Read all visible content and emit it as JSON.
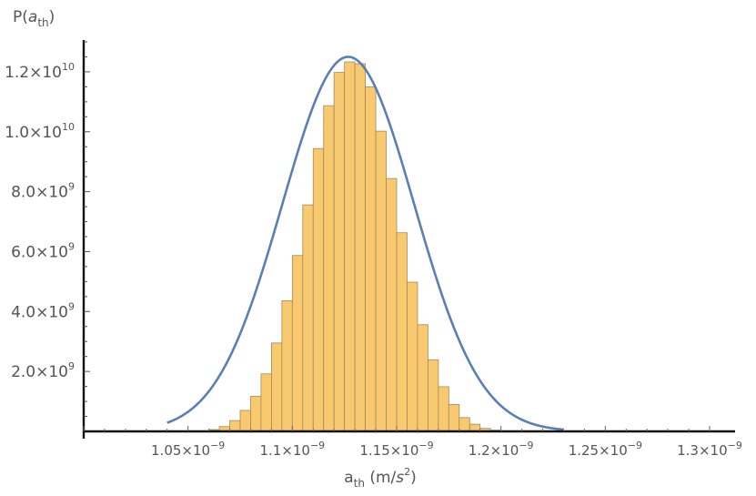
{
  "chart_data": {
    "type": "histogram",
    "ylabel_prefix": "P(",
    "ylabel_var": "a",
    "ylabel_sub": "th",
    "ylabel_suffix": ")",
    "xlabel_var": "a",
    "xlabel_sub": "th",
    "xlabel_unit": " (m/",
    "xlabel_unit_var": "s",
    "xlabel_unit_exp": "2",
    "xlabel_unit_close": ")",
    "x_axis_cross": 1e-09,
    "xlim": [
      1e-09,
      1.3e-09
    ],
    "ylim": [
      0,
      13000000000.0
    ],
    "grid": false,
    "legend": "none",
    "x_ticks": [
      {
        "value": 1.05e-09,
        "mant": "1.05",
        "times": "×10",
        "exp": "−9"
      },
      {
        "value": 1.1e-09,
        "mant": "1.1",
        "times": "×10",
        "exp": "−9"
      },
      {
        "value": 1.15e-09,
        "mant": "1.15",
        "times": "×10",
        "exp": "−9"
      },
      {
        "value": 1.2e-09,
        "mant": "1.2",
        "times": "×10",
        "exp": "−9"
      },
      {
        "value": 1.25e-09,
        "mant": "1.25",
        "times": "×10",
        "exp": "−9"
      },
      {
        "value": 1.3e-09,
        "mant": "1.3",
        "times": "×10",
        "exp": "−9"
      }
    ],
    "y_ticks": [
      {
        "value": 2000000000.0,
        "mant": "2.0",
        "times": "×10",
        "exp": "9"
      },
      {
        "value": 4000000000.0,
        "mant": "4.0",
        "times": "×10",
        "exp": "9"
      },
      {
        "value": 6000000000.0,
        "mant": "6.0",
        "times": "×10",
        "exp": "9"
      },
      {
        "value": 8000000000.0,
        "mant": "8.0",
        "times": "×10",
        "exp": "9"
      },
      {
        "value": 10000000000.0,
        "mant": "1.0",
        "times": "×10",
        "exp": "10"
      },
      {
        "value": 12000000000.0,
        "mant": "1.2",
        "times": "×10",
        "exp": "10"
      }
    ],
    "bin_width": 5e-12,
    "bins": [
      {
        "x0": 1.05e-09,
        "y": 10000000.0
      },
      {
        "x0": 1.055e-09,
        "y": 20000000.0
      },
      {
        "x0": 1.06e-09,
        "y": 60000000.0
      },
      {
        "x0": 1.065e-09,
        "y": 160000000.0
      },
      {
        "x0": 1.07e-09,
        "y": 360000000.0
      },
      {
        "x0": 1.075e-09,
        "y": 700000000.0
      },
      {
        "x0": 1.08e-09,
        "y": 1170000000.0
      },
      {
        "x0": 1.085e-09,
        "y": 1920000000.0
      },
      {
        "x0": 1.09e-09,
        "y": 2950000000.0
      },
      {
        "x0": 1.095e-09,
        "y": 4360000000.0
      },
      {
        "x0": 1.1e-09,
        "y": 5870000000.0
      },
      {
        "x0": 1.105e-09,
        "y": 7560000000.0
      },
      {
        "x0": 1.11e-09,
        "y": 9440000000.0
      },
      {
        "x0": 1.115e-09,
        "y": 10870000000.0
      },
      {
        "x0": 1.12e-09,
        "y": 11980000000.0
      },
      {
        "x0": 1.125e-09,
        "y": 12330000000.0
      },
      {
        "x0": 1.13e-09,
        "y": 12270000000.0
      },
      {
        "x0": 1.135e-09,
        "y": 11500000000.0
      },
      {
        "x0": 1.14e-09,
        "y": 10020000000.0
      },
      {
        "x0": 1.145e-09,
        "y": 8440000000.0
      },
      {
        "x0": 1.15e-09,
        "y": 6630000000.0
      },
      {
        "x0": 1.155e-09,
        "y": 4980000000.0
      },
      {
        "x0": 1.16e-09,
        "y": 3560000000.0
      },
      {
        "x0": 1.165e-09,
        "y": 2390000000.0
      },
      {
        "x0": 1.17e-09,
        "y": 1490000000.0
      },
      {
        "x0": 1.175e-09,
        "y": 900000000.0
      },
      {
        "x0": 1.18e-09,
        "y": 460000000.0
      },
      {
        "x0": 1.185e-09,
        "y": 240000000.0
      },
      {
        "x0": 1.19e-09,
        "y": 100000000.0
      },
      {
        "x0": 1.195e-09,
        "y": 40000000.0
      }
    ],
    "curve": {
      "type": "gaussian",
      "peak": 12500000000.0,
      "mean": 1.1268e-09,
      "sigma": 3.16e-11
    },
    "colors": {
      "bar_fill": "#f9c96f",
      "bar_stroke": "#a08a5e",
      "curve": "#5b7fb4",
      "axis": "#111111",
      "text": "#555555"
    }
  }
}
